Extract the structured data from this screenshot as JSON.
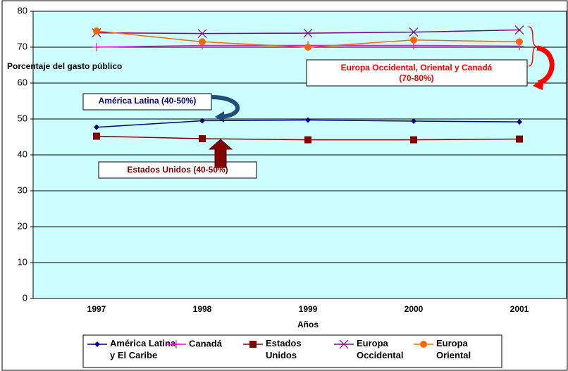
{
  "chart_data": {
    "type": "line",
    "y_label": "Porcentaje del gasto público",
    "x_label": "Años",
    "categories": [
      "1997",
      "1998",
      "1999",
      "2000",
      "2001"
    ],
    "series": [
      {
        "name": "América Latina y El Caribe",
        "color": "#000080",
        "marker": "diamond",
        "values": [
          47.7,
          49.5,
          49.7,
          49.4,
          49.2
        ]
      },
      {
        "name": "Canadá",
        "color": "#ff00ff",
        "marker": "plus",
        "values": [
          70,
          70.5,
          70.5,
          70.5,
          70.3
        ]
      },
      {
        "name": "Estados Unidos",
        "color": "#800000",
        "marker": "square",
        "values": [
          45.2,
          44.5,
          44.2,
          44.2,
          44.4
        ]
      },
      {
        "name": "Europa Occidental",
        "color": "#800080",
        "marker": "x",
        "values": [
          74,
          73.8,
          73.9,
          74.2,
          74.8
        ]
      },
      {
        "name": "Europa Oriental",
        "color": "#ff6600",
        "marker": "circle",
        "values": [
          74.5,
          71.5,
          70,
          72,
          71.5
        ]
      }
    ],
    "annotations": [
      "América Latina (40-50%)",
      "Estados Unidos (40-50%)",
      "Europa Occidental, Oriental y Canadá",
      "(70-80%)"
    ],
    "ylim": [
      0,
      80
    ],
    "yticks": [
      0,
      10,
      20,
      30,
      40,
      50,
      60,
      70,
      80
    ],
    "grid": true
  }
}
